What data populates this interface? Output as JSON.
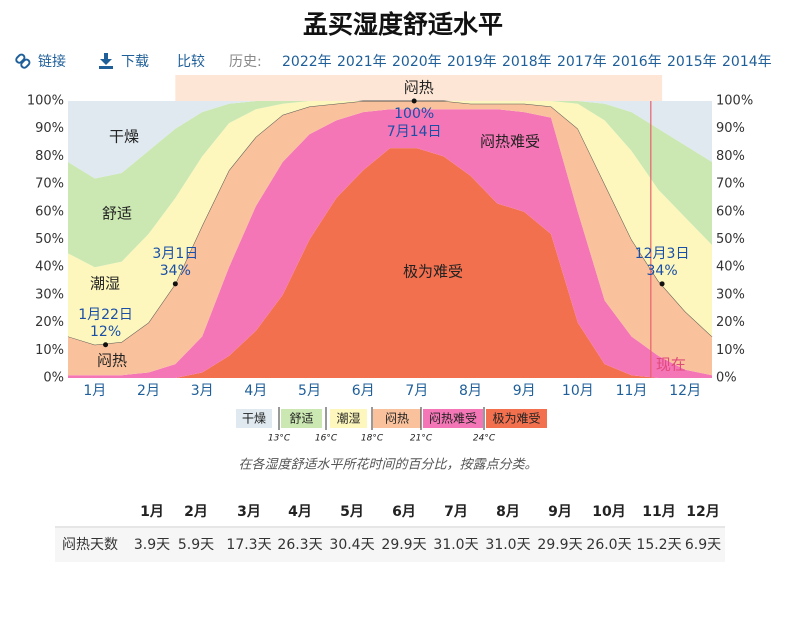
{
  "chart_data": {
    "type": "stacked-area",
    "title": "孟买湿度舒适水平",
    "nav": {
      "links": [
        "链接",
        "下载",
        "比较"
      ],
      "history_label": "历史:",
      "years": [
        "2022年",
        "2021年",
        "2020年",
        "2019年",
        "2018年",
        "2017年",
        "2016年",
        "2015年",
        "2014年"
      ]
    },
    "x": [
      0,
      0.5,
      1,
      1.5,
      2,
      2.5,
      3,
      3.5,
      4,
      4.5,
      5,
      5.5,
      6,
      6.5,
      7,
      7.5,
      8,
      8.5,
      9,
      9.5,
      10,
      10.5,
      11,
      11.5,
      12
    ],
    "xlim": [
      0,
      12
    ],
    "xticks": [
      {
        "value": 0.5,
        "label": "1月"
      },
      {
        "value": 1.5,
        "label": "2月"
      },
      {
        "value": 2.5,
        "label": "3月"
      },
      {
        "value": 3.5,
        "label": "4月"
      },
      {
        "value": 4.5,
        "label": "5月"
      },
      {
        "value": 5.5,
        "label": "6月"
      },
      {
        "value": 6.5,
        "label": "7月"
      },
      {
        "value": 7.5,
        "label": "8月"
      },
      {
        "value": 8.5,
        "label": "9月"
      },
      {
        "value": 9.5,
        "label": "10月"
      },
      {
        "value": 10.5,
        "label": "11月"
      },
      {
        "value": 11.5,
        "label": "12月"
      }
    ],
    "ylim": [
      0,
      100
    ],
    "yticks": [
      {
        "value": 0,
        "label": "0%"
      },
      {
        "value": 10,
        "label": "10%"
      },
      {
        "value": 20,
        "label": "20%"
      },
      {
        "value": 30,
        "label": "30%"
      },
      {
        "value": 40,
        "label": "40%"
      },
      {
        "value": 50,
        "label": "50%"
      },
      {
        "value": 60,
        "label": "60%"
      },
      {
        "value": 70,
        "label": "70%"
      },
      {
        "value": 80,
        "label": "80%"
      },
      {
        "value": 90,
        "label": "90%"
      },
      {
        "value": 100,
        "label": "100%"
      }
    ],
    "series": [
      {
        "name": "干燥",
        "color": "#dfe9ef",
        "values": [
          22,
          28,
          26,
          18,
          10,
          4,
          1,
          0,
          0,
          0,
          0,
          0,
          0,
          0,
          0,
          0,
          0,
          0,
          0,
          0,
          1,
          4,
          10,
          16,
          22
        ]
      },
      {
        "name": "舒适",
        "color": "#cbe8b2",
        "values": [
          33,
          32,
          32,
          30,
          25,
          16,
          7,
          3,
          1,
          0,
          0,
          0,
          0,
          0,
          0,
          0,
          0,
          0,
          0,
          1,
          6,
          14,
          22,
          26,
          30
        ]
      },
      {
        "name": "潮湿",
        "color": "#fdf7bd",
        "values": [
          30,
          28,
          29,
          32,
          31,
          25,
          17,
          10,
          4,
          2,
          1,
          0,
          0,
          0,
          0,
          1,
          1,
          1,
          2,
          9,
          23,
          32,
          33,
          34,
          33
        ]
      },
      {
        "name": "闷热",
        "color": "#f9c29c",
        "values": [
          14,
          11,
          12,
          18,
          29,
          40,
          35,
          25,
          17,
          10,
          6,
          4,
          3,
          3,
          3,
          2,
          2,
          3,
          4,
          30,
          42,
          35,
          27,
          21,
          14
        ]
      },
      {
        "name": "闷热难受",
        "color": "#f576b6",
        "values": [
          1,
          1,
          1,
          2,
          5,
          13,
          32,
          45,
          48,
          38,
          28,
          21,
          14,
          14,
          17,
          24,
          34,
          36,
          42,
          40,
          23,
          14,
          8,
          3,
          1
        ]
      },
      {
        "name": "极为难受",
        "color": "#f3704f",
        "values": [
          0,
          0,
          0,
          0,
          0,
          2,
          8,
          17,
          30,
          50,
          65,
          75,
          83,
          83,
          80,
          73,
          63,
          60,
          52,
          20,
          5,
          1,
          0,
          0,
          0
        ]
      }
    ],
    "legend_thresholds": [
      "13°C",
      "16°C",
      "18°C",
      "21°C",
      "24°C"
    ],
    "annotations": [
      {
        "x": 0.7,
        "y": 12,
        "label": "1月22日",
        "value_label": "12%"
      },
      {
        "x": 2,
        "y": 34,
        "label": "3月1日",
        "value_label": "34%"
      },
      {
        "x": 6.45,
        "y": 100,
        "label": "7月14日",
        "value_label": "100%"
      },
      {
        "x": 11.07,
        "y": 34,
        "label": "12月3日",
        "value_label": "34%"
      }
    ],
    "now": {
      "x": 10.86,
      "label": "现在"
    },
    "caption": "在各湿度舒适水平所花时间的百分比，按露点分类。",
    "table": {
      "header": [
        "1月",
        "2月",
        "3月",
        "4月",
        "5月",
        "6月",
        "7月",
        "8月",
        "9月",
        "10月",
        "11月",
        "12月"
      ],
      "row_label": "闷热天数",
      "values": [
        "3.9天",
        "5.9天",
        "17.3天",
        "26.3天",
        "30.4天",
        "29.9天",
        "31.0天",
        "31.0天",
        "29.9天",
        "26.0天",
        "15.2天",
        "6.9天"
      ]
    }
  }
}
